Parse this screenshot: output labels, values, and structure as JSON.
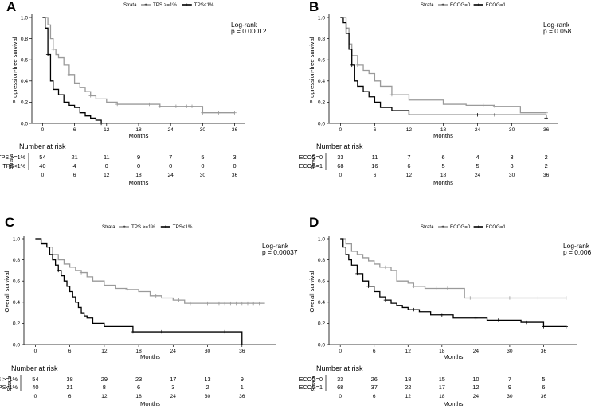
{
  "colors": {
    "grey": "#9a9a9a",
    "black": "#000000"
  },
  "chart_data": [
    {
      "type": "line",
      "panel_label": "A",
      "legend_title": "Strata",
      "ylabel": "Progression-free survival",
      "xlabel": "Months",
      "xlim": [
        -2,
        38
      ],
      "x_ticks": [
        0,
        6,
        12,
        18,
        24,
        30,
        36
      ],
      "x_tick_labels": [
        "0",
        "6",
        "12",
        "18",
        "24",
        "30",
        "36"
      ],
      "ylim": [
        0,
        1
      ],
      "y_ticks": [
        0.0,
        0.2,
        0.4,
        0.6,
        0.8,
        1.0
      ],
      "y_tick_labels": [
        "0.0",
        "0.2",
        "0.4",
        "0.6",
        "0.8",
        "1.0"
      ],
      "logrank_label": "Log-rank",
      "pvalue": "p = 0.00012",
      "risk_title": "Number at risk",
      "risk_axis_label": "Strata",
      "risk_xlabel": "Months",
      "series": [
        {
          "name": "TPS >=1%",
          "color": "grey",
          "x": [
            0,
            1,
            1.5,
            2,
            2.5,
            3,
            4,
            5,
            6,
            7,
            8,
            9,
            10,
            12,
            14,
            22,
            30,
            36
          ],
          "y": [
            1.0,
            0.93,
            0.8,
            0.7,
            0.65,
            0.62,
            0.55,
            0.46,
            0.38,
            0.34,
            0.3,
            0.26,
            0.23,
            0.2,
            0.18,
            0.16,
            0.1,
            0.1
          ],
          "censor_x": [
            2,
            5,
            9,
            14,
            20,
            22,
            25,
            27,
            28,
            30,
            33,
            36
          ],
          "risk": [
            54,
            21,
            11,
            9,
            7,
            5,
            3
          ]
        },
        {
          "name": "TPS<1%",
          "color": "black",
          "x": [
            0,
            0.5,
            1,
            1.5,
            2,
            3,
            4,
            5,
            6,
            7,
            8,
            9,
            10,
            11
          ],
          "y": [
            1.0,
            0.9,
            0.65,
            0.4,
            0.32,
            0.27,
            0.2,
            0.17,
            0.15,
            0.1,
            0.07,
            0.05,
            0.03,
            0.0
          ],
          "censor_x": [
            1,
            11
          ],
          "risk": [
            40,
            4,
            0,
            0,
            0,
            0,
            0
          ]
        }
      ]
    },
    {
      "type": "line",
      "panel_label": "B",
      "legend_title": "Strata",
      "ylabel": "Progression-free survival",
      "xlabel": "Months",
      "xlim": [
        -2,
        38
      ],
      "x_ticks": [
        0,
        6,
        12,
        18,
        24,
        30,
        36
      ],
      "x_tick_labels": [
        "0",
        "6",
        "12",
        "18",
        "24",
        "30",
        "36"
      ],
      "ylim": [
        0,
        1
      ],
      "y_ticks": [
        0.0,
        0.2,
        0.4,
        0.6,
        0.8,
        1.0
      ],
      "y_tick_labels": [
        "0.0",
        "0.2",
        "0.4",
        "0.6",
        "0.8",
        "1.0"
      ],
      "logrank_label": "Log-rank",
      "pvalue": "p = 0.058",
      "risk_title": "Number at risk",
      "risk_axis_label": "Strata",
      "risk_xlabel": "Months",
      "series": [
        {
          "name": "ECOG=0",
          "color": "grey",
          "x": [
            0,
            1,
            1.5,
            2,
            3,
            4,
            5,
            6,
            7,
            9,
            12,
            18,
            22,
            27,
            31.5,
            36
          ],
          "y": [
            1.0,
            0.9,
            0.75,
            0.64,
            0.55,
            0.5,
            0.47,
            0.4,
            0.35,
            0.27,
            0.22,
            0.18,
            0.17,
            0.16,
            0.1,
            0.1
          ],
          "censor_x": [
            3,
            9,
            25,
            27,
            36
          ],
          "risk": [
            33,
            11,
            7,
            6,
            4,
            3,
            2
          ]
        },
        {
          "name": "ECOG=1",
          "color": "black",
          "x": [
            0,
            0.5,
            1,
            1.5,
            2,
            2.5,
            3,
            4,
            5,
            6,
            7,
            9,
            12,
            36
          ],
          "y": [
            1.0,
            0.95,
            0.85,
            0.7,
            0.55,
            0.4,
            0.35,
            0.3,
            0.25,
            0.2,
            0.15,
            0.12,
            0.08,
            0.05
          ],
          "censor_x": [
            2,
            24,
            27,
            36
          ],
          "risk": [
            68,
            16,
            6,
            5,
            5,
            3,
            2
          ]
        }
      ]
    },
    {
      "type": "line",
      "panel_label": "C",
      "legend_title": "Strata",
      "ylabel": "Overall survival",
      "xlabel": "Months",
      "xlim": [
        -2,
        42
      ],
      "x_ticks": [
        0,
        6,
        12,
        18,
        24,
        30,
        36
      ],
      "x_tick_labels": [
        "0",
        "6",
        "12",
        "18",
        "24",
        "30",
        "36"
      ],
      "ylim": [
        0,
        1
      ],
      "y_ticks": [
        0.0,
        0.2,
        0.4,
        0.6,
        0.8,
        1.0
      ],
      "y_tick_labels": [
        "0.0",
        "0.2",
        "0.4",
        "0.6",
        "0.8",
        "1.0"
      ],
      "logrank_label": "Log-rank",
      "pvalue": "p = 0.00037",
      "risk_title": "Number at risk",
      "risk_axis_label": "Strata",
      "risk_xlabel": "Months",
      "series": [
        {
          "name": "TPS >=1%",
          "color": "grey",
          "x": [
            0,
            1,
            2,
            3,
            4,
            5,
            6,
            7,
            8,
            9,
            10,
            12,
            14,
            16,
            18,
            20,
            22,
            24,
            26,
            40
          ],
          "y": [
            1.0,
            0.96,
            0.92,
            0.85,
            0.8,
            0.76,
            0.73,
            0.7,
            0.68,
            0.64,
            0.6,
            0.56,
            0.53,
            0.52,
            0.5,
            0.46,
            0.44,
            0.42,
            0.39,
            0.39
          ],
          "censor_x": [
            8,
            16,
            21,
            25,
            27,
            30,
            32,
            33,
            34,
            35,
            36,
            37,
            38,
            39
          ],
          "risk": [
            54,
            38,
            29,
            23,
            17,
            13,
            9
          ]
        },
        {
          "name": "TPS<1%",
          "color": "black",
          "x": [
            0,
            1,
            2,
            2.5,
            3,
            3.5,
            4,
            4.5,
            5,
            5.5,
            6,
            6.5,
            7,
            7.5,
            8,
            8.5,
            9,
            10,
            12,
            17,
            36
          ],
          "y": [
            1.0,
            0.95,
            0.92,
            0.85,
            0.8,
            0.75,
            0.7,
            0.65,
            0.6,
            0.55,
            0.5,
            0.45,
            0.4,
            0.35,
            0.3,
            0.27,
            0.25,
            0.2,
            0.17,
            0.12,
            0.0
          ],
          "censor_x": [
            4,
            17,
            22,
            33
          ],
          "risk": [
            40,
            21,
            8,
            6,
            3,
            2,
            1
          ]
        }
      ]
    },
    {
      "type": "line",
      "panel_label": "D",
      "legend_title": "Strata",
      "ylabel": "Overall survival",
      "xlabel": "Months",
      "xlim": [
        -2,
        42
      ],
      "x_ticks": [
        0,
        6,
        12,
        18,
        24,
        30,
        36
      ],
      "x_tick_labels": [
        "0",
        "6",
        "12",
        "18",
        "24",
        "30",
        "36"
      ],
      "ylim": [
        0,
        1
      ],
      "y_ticks": [
        0.0,
        0.2,
        0.4,
        0.6,
        0.8,
        1.0
      ],
      "y_tick_labels": [
        "0.0",
        "0.2",
        "0.4",
        "0.6",
        "0.8",
        "1.0"
      ],
      "logrank_label": "Log-rank",
      "pvalue": "p = 0.0061",
      "risk_title": "Number at risk",
      "risk_axis_label": "Strata",
      "risk_xlabel": "Months",
      "series": [
        {
          "name": "ECOG=0",
          "color": "grey",
          "x": [
            0,
            1,
            2,
            3,
            4,
            5,
            6,
            7,
            9,
            10,
            12,
            13,
            15,
            22,
            40
          ],
          "y": [
            1.0,
            0.95,
            0.88,
            0.85,
            0.82,
            0.79,
            0.76,
            0.73,
            0.7,
            0.6,
            0.58,
            0.55,
            0.53,
            0.44,
            0.44
          ],
          "censor_x": [
            8,
            13,
            17,
            19,
            23,
            26,
            30,
            35,
            40
          ],
          "risk": [
            33,
            26,
            18,
            15,
            10,
            7,
            5
          ]
        },
        {
          "name": "ECOG=1",
          "color": "black",
          "x": [
            0,
            0.5,
            1,
            1.5,
            2,
            3,
            4,
            5,
            6,
            7,
            8,
            9,
            10,
            11,
            12,
            14,
            16,
            20,
            26,
            32,
            36,
            40
          ],
          "y": [
            1.0,
            0.92,
            0.85,
            0.8,
            0.75,
            0.67,
            0.6,
            0.55,
            0.5,
            0.45,
            0.42,
            0.39,
            0.37,
            0.35,
            0.33,
            0.31,
            0.28,
            0.25,
            0.23,
            0.21,
            0.17,
            0.17
          ],
          "censor_x": [
            3,
            5,
            8,
            13,
            18,
            24,
            28,
            33,
            36,
            40
          ],
          "risk": [
            68,
            37,
            22,
            17,
            12,
            9,
            6
          ]
        }
      ]
    }
  ]
}
